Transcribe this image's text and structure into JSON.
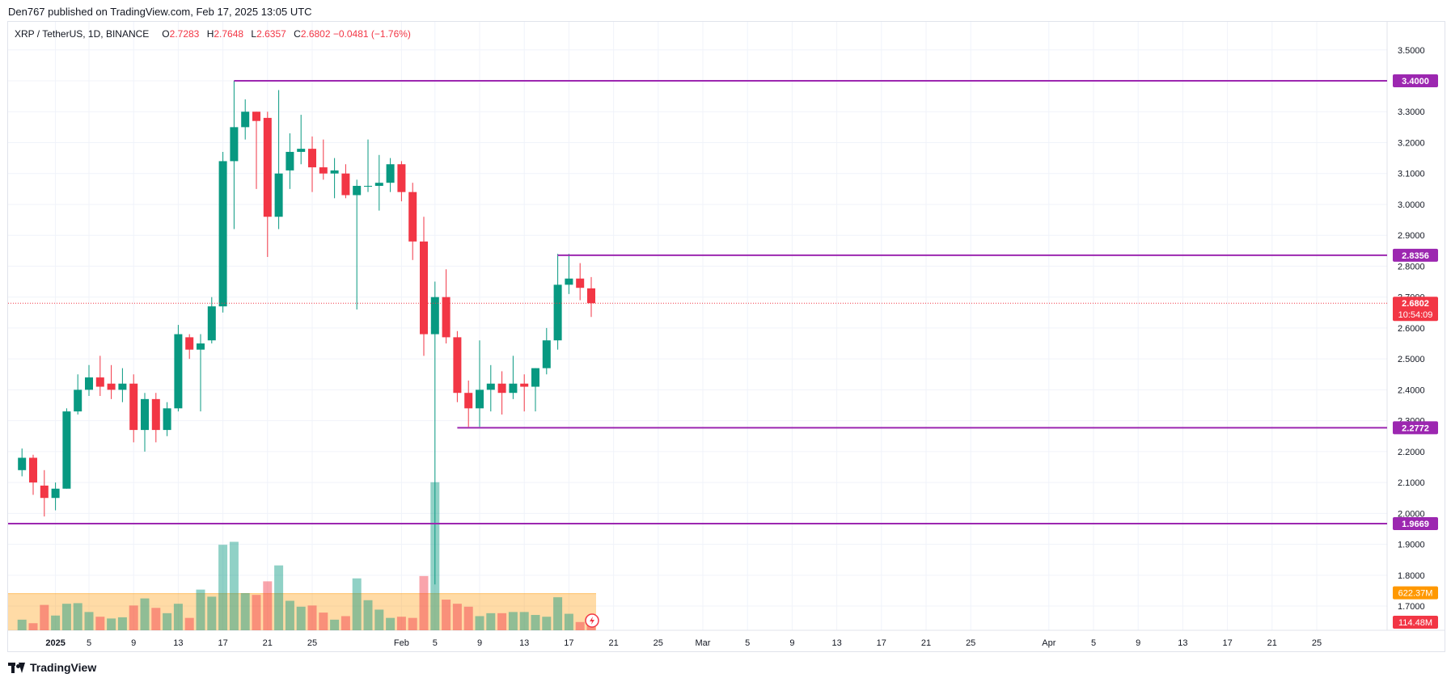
{
  "publisher": "Den767 published on TradingView.com, Feb 17, 2025 13:05 UTC",
  "legend": {
    "symbol": "XRP / TetherUS, 1D, BINANCE",
    "open_label": "O",
    "open": "2.7283",
    "high_label": "H",
    "high": "2.7648",
    "low_label": "L",
    "low": "2.6357",
    "close_label": "C",
    "close": "2.6802",
    "change": "−0.0481 (−1.76%)"
  },
  "footer": {
    "brand": "TradingView",
    "logo_icon": "tradingview-logo-icon"
  },
  "colors": {
    "up": "#089981",
    "down": "#f23645",
    "level": "#9c27b0",
    "volume_up": "#089981",
    "volume_down": "#f23645",
    "volume_ma": "#ff9800",
    "current_price": "#f23645",
    "grid": "#f0f3fa"
  },
  "chart_data": {
    "type": "candlestick",
    "ylim": [
      1.64,
      3.57
    ],
    "y_ticks": [
      "3.5000",
      "3.4000",
      "3.3000",
      "3.2000",
      "3.1000",
      "3.0000",
      "2.9000",
      "2.8000",
      "2.7000",
      "2.6000",
      "2.5000",
      "2.4000",
      "2.3000",
      "2.2000",
      "2.1000",
      "2.0000",
      "1.9000",
      "1.8000",
      "1.7000"
    ],
    "x_ticks": [
      {
        "day": 2,
        "label": "2025",
        "bold": true
      },
      {
        "day": 5,
        "label": "5"
      },
      {
        "day": 9,
        "label": "9"
      },
      {
        "day": 13,
        "label": "13"
      },
      {
        "day": 17,
        "label": "17"
      },
      {
        "day": 21,
        "label": "21"
      },
      {
        "day": 25,
        "label": "25"
      },
      {
        "day": 33,
        "label": "Feb"
      },
      {
        "day": 36,
        "label": "5"
      },
      {
        "day": 40,
        "label": "9"
      },
      {
        "day": 44,
        "label": "13"
      },
      {
        "day": 48,
        "label": "17"
      },
      {
        "day": 52,
        "label": "21"
      },
      {
        "day": 56,
        "label": "25"
      },
      {
        "day": 60,
        "label": "Mar"
      },
      {
        "day": 64,
        "label": "5"
      },
      {
        "day": 68,
        "label": "9"
      },
      {
        "day": 72,
        "label": "13"
      },
      {
        "day": 76,
        "label": "17"
      },
      {
        "day": 80,
        "label": "21"
      },
      {
        "day": 84,
        "label": "25"
      },
      {
        "day": 91,
        "label": "Apr"
      },
      {
        "day": 95,
        "label": "5"
      },
      {
        "day": 99,
        "label": "9"
      },
      {
        "day": 103,
        "label": "13"
      },
      {
        "day": 107,
        "label": "17"
      },
      {
        "day": 111,
        "label": "21"
      },
      {
        "day": 115,
        "label": "25"
      }
    ],
    "candles": [
      {
        "day": -1,
        "o": 2.14,
        "h": 2.21,
        "l": 2.12,
        "c": 2.18
      },
      {
        "day": 0,
        "o": 2.18,
        "h": 2.19,
        "l": 2.06,
        "c": 2.1
      },
      {
        "day": 1,
        "o": 2.09,
        "h": 2.14,
        "l": 1.99,
        "c": 2.05
      },
      {
        "day": 2,
        "o": 2.05,
        "h": 2.1,
        "l": 2.01,
        "c": 2.08
      },
      {
        "day": 3,
        "o": 2.08,
        "h": 2.34,
        "l": 2.08,
        "c": 2.33
      },
      {
        "day": 4,
        "o": 2.33,
        "h": 2.45,
        "l": 2.32,
        "c": 2.4
      },
      {
        "day": 5,
        "o": 2.4,
        "h": 2.48,
        "l": 2.38,
        "c": 2.44
      },
      {
        "day": 6,
        "o": 2.44,
        "h": 2.51,
        "l": 2.38,
        "c": 2.41
      },
      {
        "day": 7,
        "o": 2.42,
        "h": 2.48,
        "l": 2.37,
        "c": 2.4
      },
      {
        "day": 8,
        "o": 2.4,
        "h": 2.47,
        "l": 2.36,
        "c": 2.42
      },
      {
        "day": 9,
        "o": 2.42,
        "h": 2.45,
        "l": 2.23,
        "c": 2.27
      },
      {
        "day": 10,
        "o": 2.27,
        "h": 2.39,
        "l": 2.2,
        "c": 2.37
      },
      {
        "day": 11,
        "o": 2.37,
        "h": 2.39,
        "l": 2.23,
        "c": 2.27
      },
      {
        "day": 12,
        "o": 2.27,
        "h": 2.36,
        "l": 2.25,
        "c": 2.34
      },
      {
        "day": 13,
        "o": 2.34,
        "h": 2.61,
        "l": 2.33,
        "c": 2.58
      },
      {
        "day": 14,
        "o": 2.57,
        "h": 2.58,
        "l": 2.5,
        "c": 2.53
      },
      {
        "day": 15,
        "o": 2.53,
        "h": 2.58,
        "l": 2.33,
        "c": 2.55
      },
      {
        "day": 16,
        "o": 2.56,
        "h": 2.7,
        "l": 2.55,
        "c": 2.67
      },
      {
        "day": 17,
        "o": 2.67,
        "h": 3.17,
        "l": 2.65,
        "c": 3.14
      },
      {
        "day": 18,
        "o": 3.14,
        "h": 3.4,
        "l": 2.92,
        "c": 3.25
      },
      {
        "day": 19,
        "o": 3.25,
        "h": 3.34,
        "l": 3.21,
        "c": 3.3
      },
      {
        "day": 20,
        "o": 3.3,
        "h": 3.3,
        "l": 3.05,
        "c": 3.27
      },
      {
        "day": 21,
        "o": 3.28,
        "h": 3.3,
        "l": 2.83,
        "c": 2.96
      },
      {
        "day": 22,
        "o": 2.96,
        "h": 3.37,
        "l": 2.92,
        "c": 3.1
      },
      {
        "day": 23,
        "o": 3.11,
        "h": 3.23,
        "l": 3.05,
        "c": 3.17
      },
      {
        "day": 24,
        "o": 3.17,
        "h": 3.29,
        "l": 3.13,
        "c": 3.18
      },
      {
        "day": 25,
        "o": 3.18,
        "h": 3.22,
        "l": 3.04,
        "c": 3.12
      },
      {
        "day": 26,
        "o": 3.12,
        "h": 3.21,
        "l": 3.08,
        "c": 3.1
      },
      {
        "day": 27,
        "o": 3.1,
        "h": 3.15,
        "l": 3.02,
        "c": 3.11
      },
      {
        "day": 28,
        "o": 3.1,
        "h": 3.13,
        "l": 3.02,
        "c": 3.03
      },
      {
        "day": 29,
        "o": 3.03,
        "h": 3.08,
        "l": 2.66,
        "c": 3.06
      },
      {
        "day": 30,
        "o": 3.06,
        "h": 3.21,
        "l": 3.04,
        "c": 3.06
      },
      {
        "day": 31,
        "o": 3.06,
        "h": 3.16,
        "l": 2.98,
        "c": 3.07
      },
      {
        "day": 32,
        "o": 3.07,
        "h": 3.15,
        "l": 3.04,
        "c": 3.13
      },
      {
        "day": 33,
        "o": 3.13,
        "h": 3.14,
        "l": 3.01,
        "c": 3.04
      },
      {
        "day": 34,
        "o": 3.04,
        "h": 3.07,
        "l": 2.82,
        "c": 2.88
      },
      {
        "day": 35,
        "o": 2.88,
        "h": 2.96,
        "l": 2.51,
        "c": 2.58
      },
      {
        "day": 36,
        "o": 2.58,
        "h": 2.75,
        "l": 1.77,
        "c": 2.7
      },
      {
        "day": 37,
        "o": 2.7,
        "h": 2.79,
        "l": 2.55,
        "c": 2.57
      },
      {
        "day": 38,
        "o": 2.57,
        "h": 2.59,
        "l": 2.36,
        "c": 2.39
      },
      {
        "day": 39,
        "o": 2.39,
        "h": 2.43,
        "l": 2.28,
        "c": 2.34
      },
      {
        "day": 40,
        "o": 2.34,
        "h": 2.56,
        "l": 2.28,
        "c": 2.4
      },
      {
        "day": 41,
        "o": 2.4,
        "h": 2.48,
        "l": 2.33,
        "c": 2.42
      },
      {
        "day": 42,
        "o": 2.42,
        "h": 2.46,
        "l": 2.32,
        "c": 2.39
      },
      {
        "day": 43,
        "o": 2.39,
        "h": 2.51,
        "l": 2.37,
        "c": 2.42
      },
      {
        "day": 44,
        "o": 2.42,
        "h": 2.45,
        "l": 2.33,
        "c": 2.41
      },
      {
        "day": 45,
        "o": 2.41,
        "h": 2.47,
        "l": 2.33,
        "c": 2.47
      },
      {
        "day": 46,
        "o": 2.47,
        "h": 2.6,
        "l": 2.45,
        "c": 2.56
      },
      {
        "day": 47,
        "o": 2.56,
        "h": 2.84,
        "l": 2.53,
        "c": 2.74
      },
      {
        "day": 48,
        "o": 2.74,
        "h": 2.84,
        "l": 2.71,
        "c": 2.76
      },
      {
        "day": 49,
        "o": 2.76,
        "h": 2.81,
        "l": 2.69,
        "c": 2.73
      },
      {
        "day": 50,
        "o": 2.7283,
        "h": 2.7648,
        "l": 2.6357,
        "c": 2.6802
      }
    ],
    "volume": [
      {
        "day": -1,
        "v": 0.18,
        "dir": "up"
      },
      {
        "day": 0,
        "v": 0.12,
        "dir": "down"
      },
      {
        "day": 1,
        "v": 0.43,
        "dir": "down"
      },
      {
        "day": 2,
        "v": 0.25,
        "dir": "up"
      },
      {
        "day": 3,
        "v": 0.45,
        "dir": "up"
      },
      {
        "day": 4,
        "v": 0.46,
        "dir": "up"
      },
      {
        "day": 5,
        "v": 0.31,
        "dir": "up"
      },
      {
        "day": 6,
        "v": 0.23,
        "dir": "down"
      },
      {
        "day": 7,
        "v": 0.2,
        "dir": "up"
      },
      {
        "day": 8,
        "v": 0.22,
        "dir": "up"
      },
      {
        "day": 9,
        "v": 0.42,
        "dir": "down"
      },
      {
        "day": 10,
        "v": 0.54,
        "dir": "up"
      },
      {
        "day": 11,
        "v": 0.38,
        "dir": "down"
      },
      {
        "day": 12,
        "v": 0.29,
        "dir": "up"
      },
      {
        "day": 13,
        "v": 0.45,
        "dir": "up"
      },
      {
        "day": 14,
        "v": 0.21,
        "dir": "down"
      },
      {
        "day": 15,
        "v": 0.69,
        "dir": "up"
      },
      {
        "day": 16,
        "v": 0.57,
        "dir": "up"
      },
      {
        "day": 17,
        "v": 1.45,
        "dir": "up"
      },
      {
        "day": 18,
        "v": 1.5,
        "dir": "up"
      },
      {
        "day": 19,
        "v": 0.63,
        "dir": "up"
      },
      {
        "day": 20,
        "v": 0.6,
        "dir": "down"
      },
      {
        "day": 21,
        "v": 0.83,
        "dir": "down"
      },
      {
        "day": 22,
        "v": 1.1,
        "dir": "up"
      },
      {
        "day": 23,
        "v": 0.5,
        "dir": "up"
      },
      {
        "day": 24,
        "v": 0.4,
        "dir": "up"
      },
      {
        "day": 25,
        "v": 0.42,
        "dir": "down"
      },
      {
        "day": 26,
        "v": 0.3,
        "dir": "down"
      },
      {
        "day": 27,
        "v": 0.18,
        "dir": "up"
      },
      {
        "day": 28,
        "v": 0.24,
        "dir": "down"
      },
      {
        "day": 29,
        "v": 0.88,
        "dir": "up"
      },
      {
        "day": 30,
        "v": 0.51,
        "dir": "up"
      },
      {
        "day": 31,
        "v": 0.35,
        "dir": "up"
      },
      {
        "day": 32,
        "v": 0.21,
        "dir": "up"
      },
      {
        "day": 33,
        "v": 0.23,
        "dir": "down"
      },
      {
        "day": 34,
        "v": 0.21,
        "dir": "down"
      },
      {
        "day": 35,
        "v": 0.92,
        "dir": "down"
      },
      {
        "day": 36,
        "v": 2.51,
        "dir": "up"
      },
      {
        "day": 37,
        "v": 0.52,
        "dir": "down"
      },
      {
        "day": 38,
        "v": 0.45,
        "dir": "down"
      },
      {
        "day": 39,
        "v": 0.4,
        "dir": "down"
      },
      {
        "day": 40,
        "v": 0.24,
        "dir": "up"
      },
      {
        "day": 41,
        "v": 0.29,
        "dir": "up"
      },
      {
        "day": 42,
        "v": 0.29,
        "dir": "down"
      },
      {
        "day": 43,
        "v": 0.31,
        "dir": "up"
      },
      {
        "day": 44,
        "v": 0.31,
        "dir": "up"
      },
      {
        "day": 45,
        "v": 0.26,
        "dir": "up"
      },
      {
        "day": 46,
        "v": 0.23,
        "dir": "up"
      },
      {
        "day": 47,
        "v": 0.56,
        "dir": "up"
      },
      {
        "day": 48,
        "v": 0.28,
        "dir": "up"
      },
      {
        "day": 49,
        "v": 0.14,
        "dir": "down"
      },
      {
        "day": 50,
        "v": 0.1148,
        "dir": "down"
      }
    ],
    "volume_ma": 0.6224,
    "levels": [
      {
        "price": 3.4,
        "label": "3.4000",
        "from_day": 18
      },
      {
        "price": 2.8356,
        "label": "2.8356",
        "from_day": 47
      },
      {
        "price": 2.2772,
        "label": "2.2772",
        "from_day": 38
      },
      {
        "price": 1.9669,
        "label": "1.9669",
        "from_day": -1.5
      }
    ],
    "current_price": {
      "price": 2.6802,
      "label": "2.6802",
      "countdown": "10:54:09"
    },
    "volume_labels": {
      "ma": "622.37M",
      "last": "114.48M"
    }
  }
}
